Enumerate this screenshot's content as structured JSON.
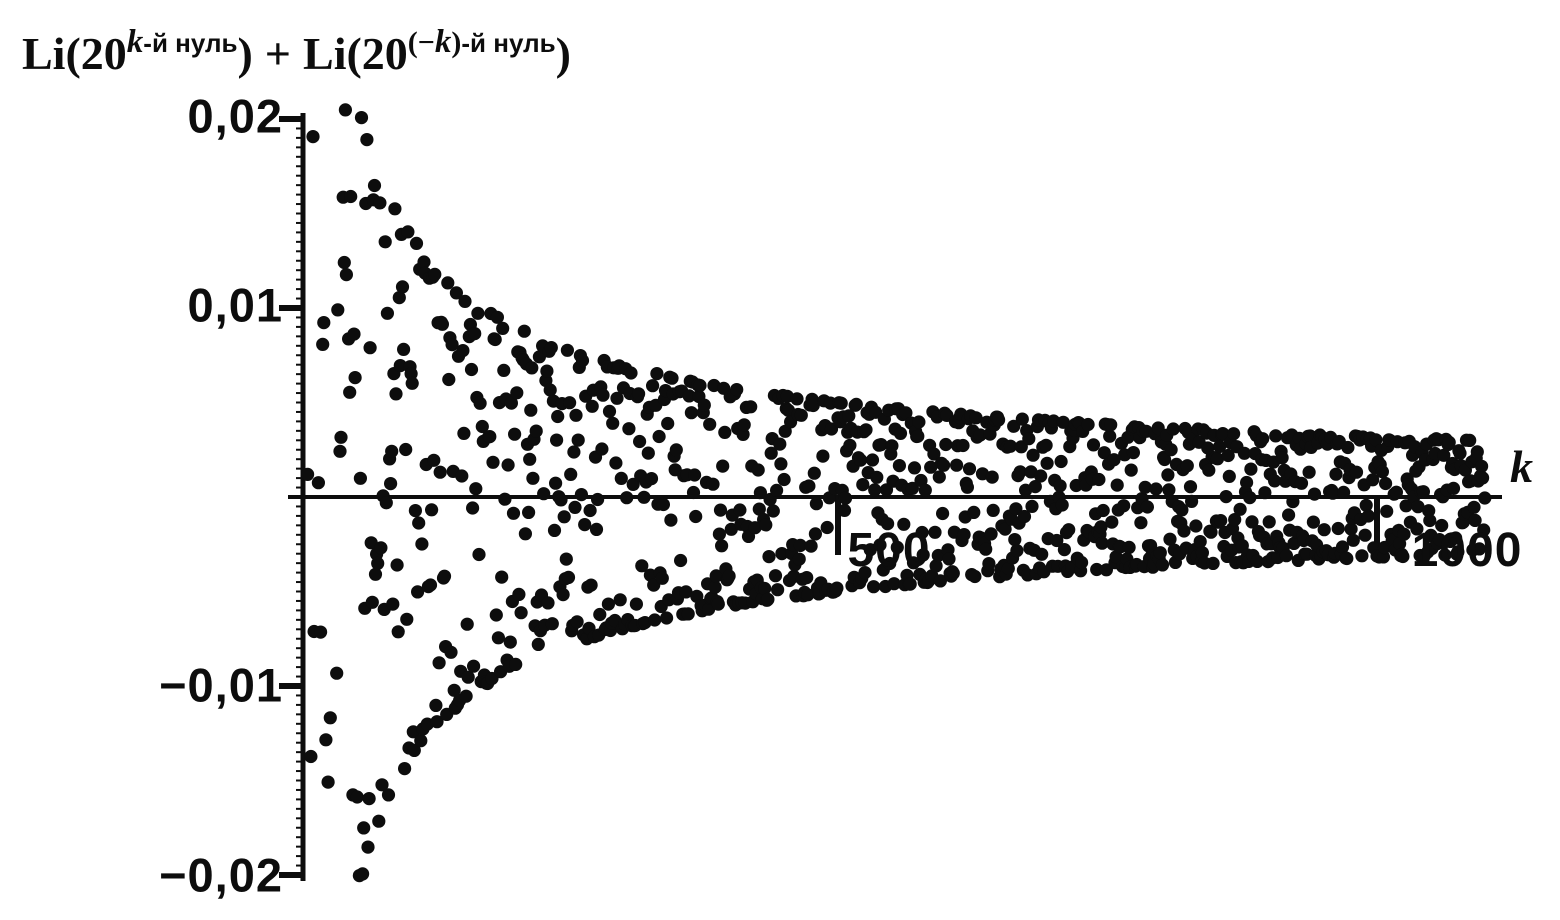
{
  "figure": {
    "title_plain": "Li(20^(k-й нуль)) + Li(20^((−k)-й нуль))",
    "title": {
      "f1": "Li(20",
      "s1k": "k",
      "s1r": "-й нуль",
      "c1": ")",
      "plus": "+",
      "f2": "Li(20",
      "s2a": "(−",
      "s2k": "k",
      "s2b": ")",
      "s2r": "-й нуль",
      "c2": ")"
    }
  },
  "chart_data": {
    "type": "scatter",
    "title": "Li(20^(k-й нуль)) + Li(20^((−k)-й нуль))",
    "xlabel": "k",
    "ylabel": "Li(20^(k-й нуль)) + Li(20^((−k)-й нуль))",
    "xlim": [
      0,
      1115
    ],
    "ylim": [
      -0.02,
      0.02
    ],
    "grid": false,
    "legend": null,
    "decimal_separator": ",",
    "x_ticks": [
      {
        "value": 500,
        "label": "500"
      },
      {
        "value": 1000,
        "label": "1000"
      }
    ],
    "y_ticks": [
      {
        "value": 0.02,
        "label": "0,02"
      },
      {
        "value": 0.01,
        "label": "0,01"
      },
      {
        "value": -0.01,
        "label": "−0,01"
      },
      {
        "value": -0.02,
        "label": "−0,02"
      }
    ],
    "y_minor_tick_step": 0.0005,
    "ink_color": "#0d0d0d",
    "background_color": "#ffffff",
    "marker": {
      "shape": "circle",
      "color": "#0d0d0d",
      "radius_px": 6.6
    },
    "scatter": {
      "k_min": 8,
      "k_max": 1100,
      "k_step": 1,
      "seed": 20,
      "envelope_coeff": 0.281,
      "envelope_power": 0.648,
      "display_clip": 0.0205,
      "model": "y(k) = 0.281·k^(−0.648)·cos(φk), φk uniform in [0,2π); points with |y|>0.0205 fall outside the plotted frame",
      "note": "≈1050 dots, one per zero-index k; individual dot values are below scan resolution and are regenerated deterministically from the seed"
    },
    "envelope_samples": [
      [
        30,
        0.02
      ],
      [
        60,
        0.0198
      ],
      [
        100,
        0.0142
      ],
      [
        150,
        0.0109
      ],
      [
        200,
        0.0091
      ],
      [
        300,
        0.007
      ],
      [
        400,
        0.0058
      ],
      [
        500,
        0.005
      ],
      [
        700,
        0.004
      ],
      [
        1000,
        0.0032
      ],
      [
        1100,
        0.003
      ]
    ],
    "example_points": [
      [
        19,
        0.0131
      ],
      [
        33,
        0.0188
      ],
      [
        61,
        0.0198
      ],
      [
        55,
        -0.0192
      ],
      [
        100,
        0.0142
      ],
      [
        437,
        -0.0055
      ],
      [
        1000,
        0.0029
      ],
      [
        1098,
        -0.0025
      ]
    ]
  }
}
